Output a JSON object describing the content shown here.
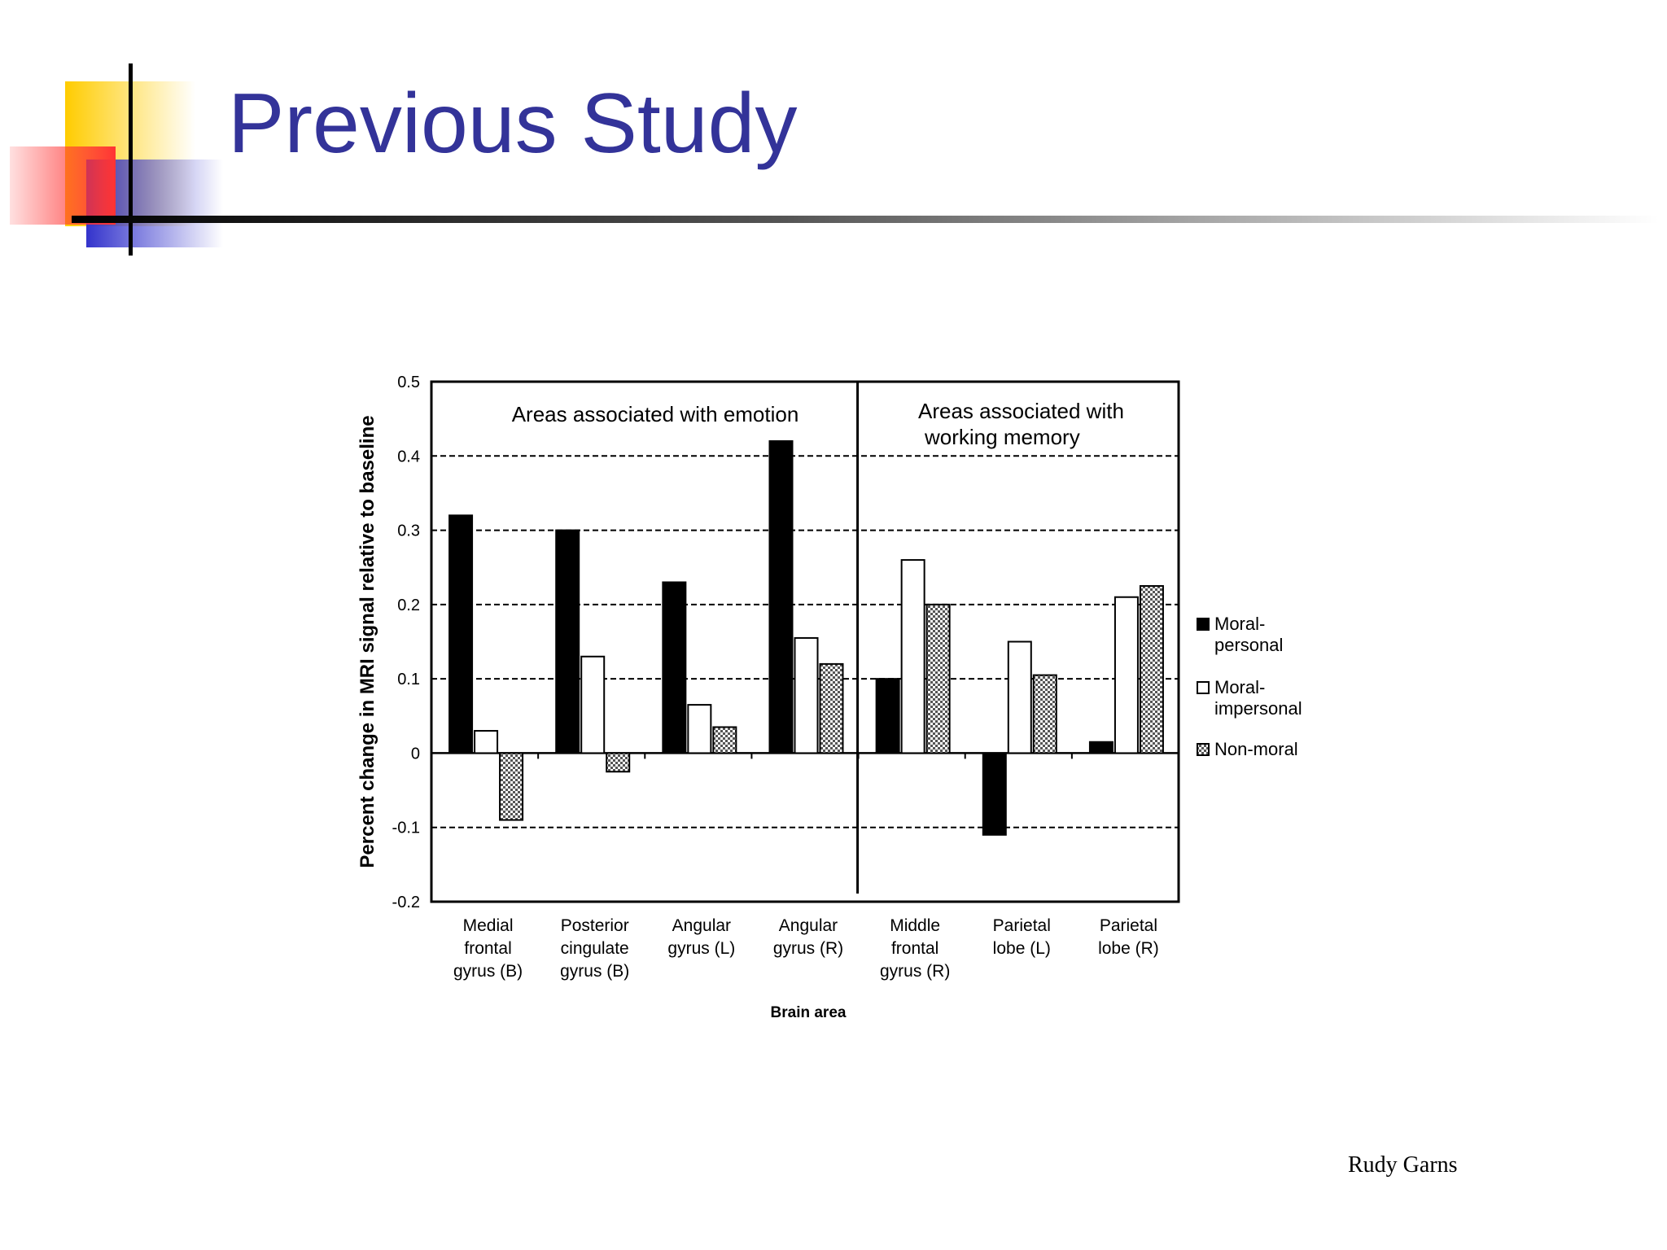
{
  "slide": {
    "title": "Previous Study",
    "author": "Rudy Garns",
    "accent_colors": {
      "title": "#333399",
      "yellow": "#ffcc00",
      "red": "#ff3333",
      "blue": "#3333cc"
    }
  },
  "chart_data": {
    "type": "bar",
    "title": "",
    "xlabel": "Brain area",
    "ylabel": "Percent change in MRI signal relative to baseline",
    "ylim": [
      -0.2,
      0.5
    ],
    "yticks": [
      "0.5",
      "0.4",
      "0.3",
      "0.2",
      "0.1",
      "0",
      "-0.1",
      "-0.2"
    ],
    "categories": [
      [
        "Medial",
        "frontal",
        "gyrus (B)"
      ],
      [
        "Posterior",
        "cingulate",
        "gyrus (B)"
      ],
      [
        "Angular",
        "gyrus (L)"
      ],
      [
        "Angular",
        "gyrus (R)"
      ],
      [
        "Middle",
        "frontal",
        "gyrus (R)"
      ],
      [
        "Parietal",
        "lobe (L)"
      ],
      [
        "Parietal",
        "lobe (R)"
      ]
    ],
    "series": [
      {
        "name": "Moral-personal",
        "legend_lines": [
          "Moral-",
          "personal"
        ],
        "fill": "#000000",
        "values": [
          0.32,
          0.3,
          0.23,
          0.42,
          0.1,
          -0.11,
          0.015
        ]
      },
      {
        "name": "Moral-impersonal",
        "legend_lines": [
          "Moral-",
          "impersonal"
        ],
        "fill": "#ffffff",
        "values": [
          0.03,
          0.13,
          0.065,
          0.155,
          0.26,
          0.15,
          0.21
        ]
      },
      {
        "name": "Non-moral",
        "legend_lines": [
          "Non-moral"
        ],
        "fill": "hatch",
        "values": [
          -0.09,
          -0.025,
          0.035,
          0.12,
          0.2,
          0.105,
          0.225
        ]
      }
    ],
    "annotations": [
      {
        "text_lines": [
          "Areas associated with emotion"
        ]
      },
      {
        "text_lines": [
          "Areas associated with",
          "working memory"
        ]
      }
    ],
    "gridlines": "dashed",
    "legend_position": "right"
  }
}
